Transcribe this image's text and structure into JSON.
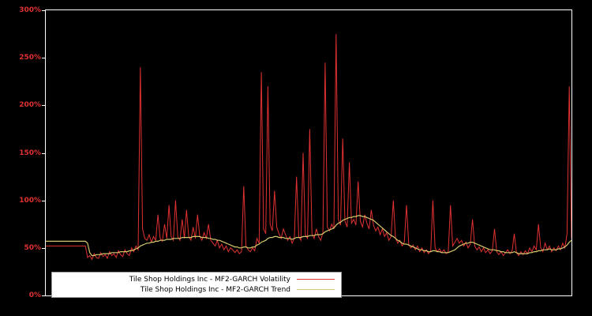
{
  "page": {
    "background": "#000000",
    "frame_color": "#ffffff",
    "axis_label_color": "#e03131"
  },
  "legend": {
    "items": [
      {
        "label": "Tile Shop Holdings Inc - MF2-GARCH Volatility",
        "color": "#e03131"
      },
      {
        "label": "Tile Shop Holdings Inc - MF2-GARCH Trend",
        "color": "#d2c96e"
      }
    ]
  },
  "chart_data": {
    "type": "line",
    "title": "",
    "xlabel": "",
    "ylabel": "",
    "ylim": [
      0,
      300
    ],
    "yticks": [
      "0%",
      "50%",
      "100%",
      "150%",
      "200%",
      "250%",
      "300%"
    ],
    "ytick_values": [
      0,
      50,
      100,
      150,
      200,
      250,
      300
    ],
    "xticks": [],
    "grid": false,
    "background": "#000000",
    "legend_position": "bottom-left-inside",
    "series": [
      {
        "name": "Tile Shop Holdings Inc - MF2-GARCH Volatility",
        "color": "#e03131",
        "unit": "%",
        "values": [
          52,
          52,
          52,
          52,
          52,
          52,
          52,
          52,
          52,
          52,
          52,
          52,
          52,
          52,
          52,
          52,
          52,
          52,
          52,
          40,
          42,
          38,
          44,
          40,
          39,
          45,
          41,
          43,
          39,
          46,
          42,
          44,
          40,
          47,
          43,
          41,
          48,
          44,
          42,
          50,
          46,
          52,
          48,
          240,
          70,
          60,
          58,
          64,
          56,
          62,
          58,
          85,
          60,
          57,
          75,
          60,
          95,
          62,
          58,
          100,
          62,
          58,
          80,
          60,
          90,
          62,
          58,
          72,
          60,
          85,
          62,
          58,
          66,
          60,
          75,
          58,
          55,
          52,
          58,
          50,
          54,
          48,
          52,
          46,
          50,
          48,
          45,
          48,
          44,
          46,
          115,
          52,
          48,
          46,
          50,
          47,
          60,
          55,
          235,
          70,
          65,
          220,
          75,
          68,
          110,
          72,
          65,
          60,
          70,
          64,
          58,
          62,
          55,
          60,
          125,
          62,
          58,
          150,
          64,
          60,
          175,
          65,
          60,
          70,
          62,
          58,
          66,
          245,
          72,
          68,
          75,
          70,
          275,
          80,
          74,
          165,
          78,
          72,
          140,
          76,
          80,
          74,
          120,
          78,
          72,
          85,
          76,
          70,
          90,
          74,
          68,
          72,
          64,
          70,
          62,
          66,
          58,
          62,
          100,
          60,
          55,
          58,
          52,
          56,
          95,
          54,
          50,
          53,
          48,
          52,
          46,
          50,
          45,
          48,
          44,
          47,
          100,
          50,
          46,
          49,
          45,
          48,
          44,
          46,
          95,
          52,
          56,
          60,
          55,
          58,
          52,
          56,
          50,
          54,
          80,
          52,
          48,
          51,
          46,
          50,
          45,
          48,
          44,
          47,
          70,
          46,
          43,
          46,
          42,
          45,
          48,
          44,
          47,
          65,
          45,
          42,
          46,
          43,
          47,
          44,
          50,
          46,
          52,
          48,
          75,
          50,
          46,
          55,
          48,
          52,
          46,
          50,
          47,
          52,
          48,
          55,
          50,
          65,
          220,
          60
        ]
      },
      {
        "name": "Tile Shop Holdings Inc - MF2-GARCH Trend",
        "color": "#d2c96e",
        "unit": "%",
        "values": [
          57,
          57,
          57,
          57,
          57,
          57,
          57,
          57,
          57,
          57,
          57,
          57,
          57,
          57,
          57,
          57,
          57,
          57,
          57,
          55,
          45,
          42,
          42,
          43,
          43,
          43,
          44,
          44,
          44,
          44,
          45,
          45,
          45,
          45,
          46,
          46,
          46,
          46,
          47,
          47,
          48,
          49,
          50,
          52,
          53,
          54,
          55,
          55,
          56,
          56,
          57,
          57,
          58,
          58,
          58,
          59,
          59,
          59,
          60,
          60,
          60,
          60,
          61,
          61,
          61,
          61,
          61,
          62,
          62,
          62,
          62,
          61,
          61,
          61,
          60,
          60,
          59,
          59,
          58,
          58,
          57,
          56,
          55,
          54,
          53,
          52,
          51,
          51,
          50,
          50,
          51,
          51,
          50,
          50,
          51,
          51,
          53,
          54,
          56,
          57,
          58,
          60,
          61,
          61,
          62,
          62,
          61,
          61,
          61,
          60,
          60,
          60,
          59,
          60,
          61,
          61,
          61,
          62,
          62,
          62,
          63,
          63,
          63,
          64,
          64,
          64,
          65,
          67,
          68,
          69,
          70,
          71,
          74,
          76,
          77,
          79,
          80,
          81,
          82,
          82,
          83,
          83,
          84,
          84,
          83,
          83,
          82,
          81,
          80,
          79,
          77,
          75,
          73,
          71,
          69,
          67,
          65,
          63,
          62,
          60,
          58,
          57,
          55,
          54,
          54,
          53,
          52,
          51,
          50,
          49,
          48,
          48,
          47,
          47,
          46,
          46,
          47,
          47,
          46,
          46,
          45,
          45,
          45,
          45,
          46,
          47,
          48,
          50,
          52,
          53,
          54,
          55,
          55,
          56,
          56,
          55,
          54,
          53,
          52,
          51,
          50,
          49,
          48,
          48,
          48,
          47,
          47,
          46,
          46,
          45,
          45,
          45,
          45,
          46,
          45,
          44,
          44,
          44,
          44,
          44,
          45,
          45,
          46,
          46,
          47,
          47,
          48,
          48,
          48,
          49,
          48,
          48,
          48,
          49,
          49,
          50,
          51,
          53,
          56,
          58
        ]
      }
    ]
  }
}
